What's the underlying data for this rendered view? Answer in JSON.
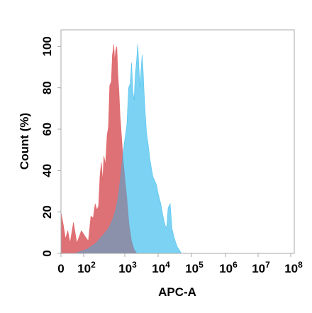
{
  "chart_data": {
    "type": "area",
    "title": "",
    "xlabel": "APC-A",
    "ylabel": "Count (%)",
    "x_scale": "biexponential",
    "x_ticks": [
      {
        "value": 0,
        "base": "0",
        "exp": ""
      },
      {
        "value": 100,
        "base": "10",
        "exp": "2"
      },
      {
        "value": 1000,
        "base": "10",
        "exp": "3"
      },
      {
        "value": 10000,
        "base": "10",
        "exp": "4"
      },
      {
        "value": 100000,
        "base": "10",
        "exp": "5"
      },
      {
        "value": 1000000,
        "base": "10",
        "exp": "6"
      },
      {
        "value": 10000000,
        "base": "10",
        "exp": "7"
      },
      {
        "value": 100000000,
        "base": "10",
        "exp": "8"
      }
    ],
    "y_ticks": [
      "0",
      "20",
      "40",
      "60",
      "80",
      "100"
    ],
    "ylim": [
      0,
      108
    ],
    "grid": false,
    "series": [
      {
        "color": "#f46d6d",
        "fill_opacity": 0.85,
        "points": [
          [
            0,
            20
          ],
          [
            10,
            14
          ],
          [
            20,
            7
          ],
          [
            30,
            11
          ],
          [
            40,
            5
          ],
          [
            55,
            15
          ],
          [
            70,
            5
          ],
          [
            90,
            11
          ],
          [
            110,
            8
          ],
          [
            130,
            6
          ],
          [
            150,
            18
          ],
          [
            170,
            17
          ],
          [
            190,
            24
          ],
          [
            210,
            21
          ],
          [
            230,
            23
          ],
          [
            250,
            38
          ],
          [
            270,
            44
          ],
          [
            290,
            35
          ],
          [
            310,
            47
          ],
          [
            340,
            43
          ],
          [
            370,
            57
          ],
          [
            400,
            61
          ],
          [
            430,
            81
          ],
          [
            470,
            83
          ],
          [
            500,
            96
          ],
          [
            520,
            98
          ],
          [
            540,
            101
          ],
          [
            570,
            93
          ],
          [
            600,
            98
          ],
          [
            640,
            100
          ],
          [
            680,
            86
          ],
          [
            720,
            79
          ],
          [
            770,
            66
          ],
          [
            830,
            57
          ],
          [
            900,
            47
          ],
          [
            1000,
            37
          ],
          [
            1150,
            27
          ],
          [
            1350,
            14
          ],
          [
            1600,
            6
          ],
          [
            1900,
            2
          ],
          [
            2300,
            0
          ]
        ]
      },
      {
        "color": "#4fc3ef",
        "fill_opacity": 0.75,
        "points": [
          [
            0,
            0
          ],
          [
            60,
            0
          ],
          [
            120,
            2
          ],
          [
            200,
            5
          ],
          [
            300,
            9
          ],
          [
            400,
            12
          ],
          [
            500,
            16
          ],
          [
            600,
            21
          ],
          [
            700,
            28
          ],
          [
            800,
            38
          ],
          [
            900,
            48
          ],
          [
            1000,
            55
          ],
          [
            1150,
            62
          ],
          [
            1300,
            80
          ],
          [
            1450,
            82
          ],
          [
            1600,
            92
          ],
          [
            1750,
            78
          ],
          [
            1900,
            74
          ],
          [
            2050,
            86
          ],
          [
            2250,
            93
          ],
          [
            2450,
            101
          ],
          [
            2650,
            90
          ],
          [
            2850,
            80
          ],
          [
            3050,
            88
          ],
          [
            3300,
            96
          ],
          [
            3550,
            88
          ],
          [
            3800,
            78
          ],
          [
            4100,
            68
          ],
          [
            4500,
            58
          ],
          [
            5000,
            53
          ],
          [
            5600,
            46
          ],
          [
            6300,
            41
          ],
          [
            7000,
            37
          ],
          [
            8000,
            35
          ],
          [
            9000,
            33
          ],
          [
            10000,
            29
          ],
          [
            12000,
            24
          ],
          [
            14000,
            18
          ],
          [
            16000,
            14
          ],
          [
            18000,
            12
          ],
          [
            20000,
            22
          ],
          [
            23000,
            24
          ],
          [
            26000,
            12
          ],
          [
            30000,
            8
          ],
          [
            34000,
            5
          ],
          [
            38000,
            3
          ],
          [
            42000,
            2
          ],
          [
            46000,
            1
          ],
          [
            50000,
            0
          ]
        ]
      }
    ]
  }
}
